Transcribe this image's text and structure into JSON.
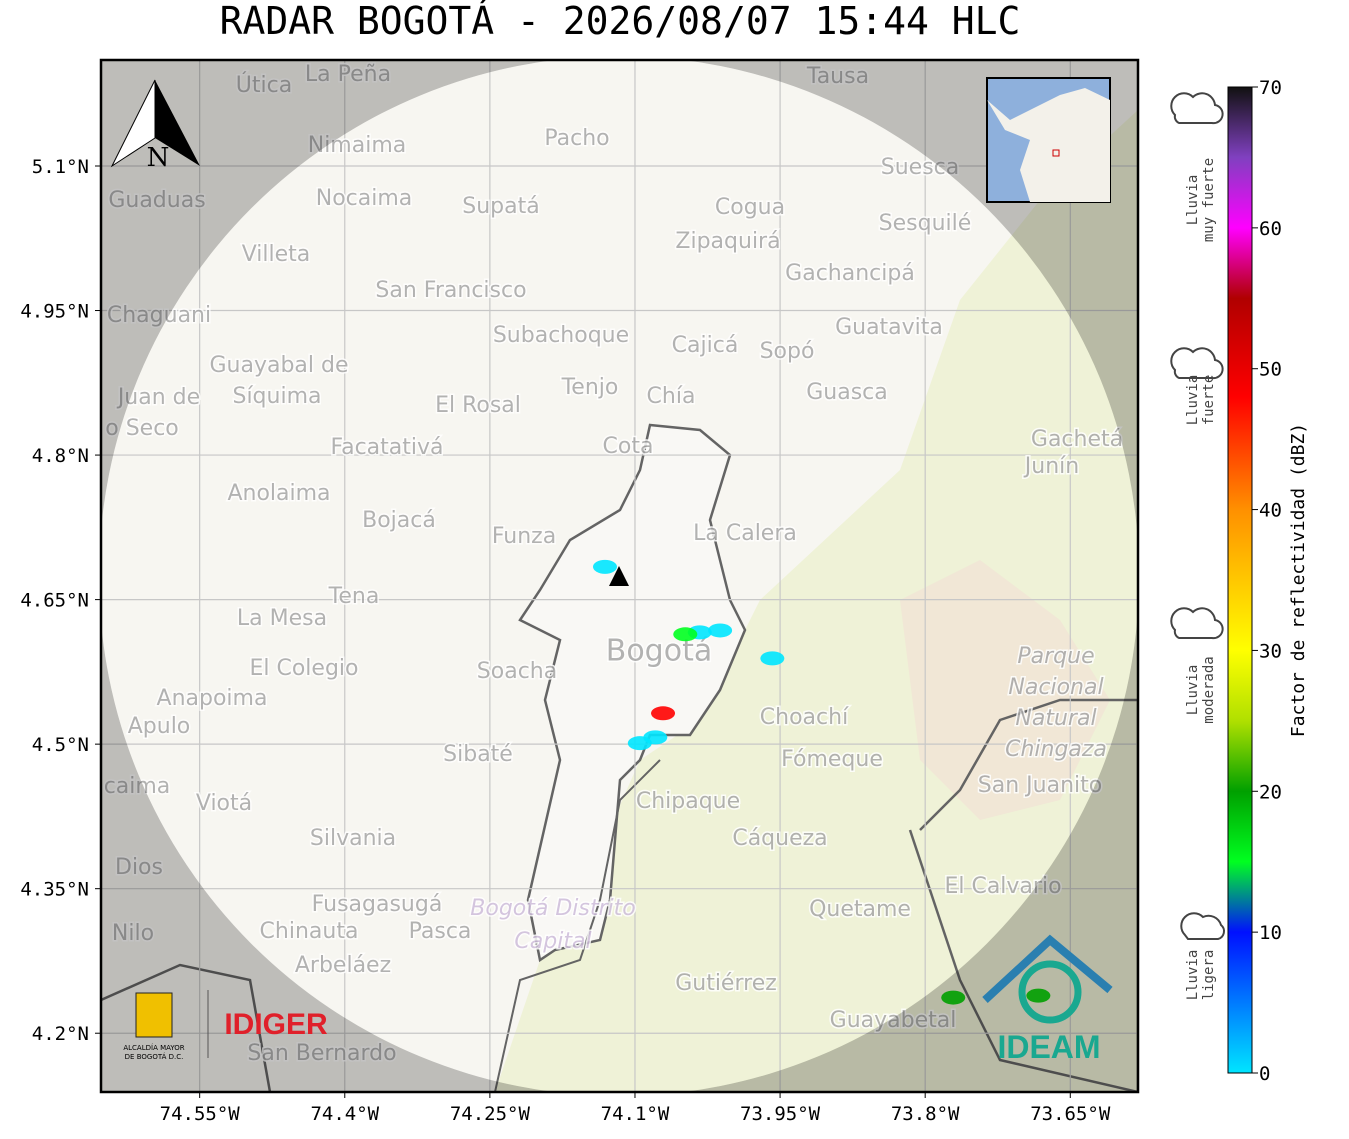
{
  "title": "RADAR BOGOTÁ - 2026/08/07 15:44 HLC",
  "map": {
    "xlim": [
      -74.652,
      -73.58
    ],
    "ylim": [
      4.139,
      5.21
    ],
    "xticks": [
      {
        "value": -74.55,
        "label": "74.55°W"
      },
      {
        "value": -74.4,
        "label": "74.4°W"
      },
      {
        "value": -74.25,
        "label": "74.25°W"
      },
      {
        "value": -74.1,
        "label": "74.1°W"
      },
      {
        "value": -73.95,
        "label": "73.95°W"
      },
      {
        "value": -73.8,
        "label": "73.8°W"
      },
      {
        "value": -73.65,
        "label": "73.65°W"
      }
    ],
    "yticks": [
      {
        "value": 5.1,
        "label": "5.1°N"
      },
      {
        "value": 4.95,
        "label": "4.95°N"
      },
      {
        "value": 4.8,
        "label": "4.8°N"
      },
      {
        "value": 4.65,
        "label": "4.65°N"
      },
      {
        "value": 4.5,
        "label": "4.5°N"
      },
      {
        "value": 4.35,
        "label": "4.35°N"
      },
      {
        "value": 4.2,
        "label": "4.2°N"
      }
    ],
    "grid": true,
    "north": "N",
    "places": [
      "La Peña",
      "Útica",
      "Tausa",
      "Pacho",
      "Nimaima",
      "Guaduas",
      "Nocaima",
      "Supatá",
      "Cogua",
      "Suesca",
      "Sesquilé",
      "Villeta",
      "Zipaquirá",
      "Gachancipá",
      "San Francisco",
      "Chaguani",
      "Guatavita",
      "Subachoque",
      "Cajicá",
      "Sopó",
      "Guayabal de",
      "Síquima",
      "Juan de",
      "o Seco",
      "Tenjo",
      "Chía",
      "Guasca",
      "El Rosal",
      "Facatativá",
      "Cota",
      "Gachetá",
      "Junín",
      "Anolaima",
      "Bojacá",
      "Funza",
      "La Calera",
      "Tena",
      "La Mesa",
      "Bogotá",
      "El Colegio",
      "Soacha",
      "Anapoima",
      "Apulo",
      "Choachí",
      "Sibaté",
      "Fómeque",
      "caima",
      "Viotá",
      "Chipaque",
      "Silvania",
      "Cáqueza",
      "Dios",
      "El Calvario",
      "Fusagasugá",
      "Quetame",
      "Chinauta",
      "Pasca",
      "Nilo",
      "Arbeláez",
      "Gutiérrez",
      "Guayabetal",
      "San Bernardo",
      "San Juanito"
    ],
    "park": [
      "Parque",
      "Nacional",
      "Natural",
      "Chingaza"
    ],
    "district": [
      "Bogotá Distrito",
      "Capital"
    ],
    "echoes": [
      {
        "lon": -74.131,
        "lat": 4.684,
        "dbz": 8
      },
      {
        "lon": -74.033,
        "lat": 4.616,
        "dbz": 8
      },
      {
        "lon": -74.012,
        "lat": 4.618,
        "dbz": 6
      },
      {
        "lon": -74.048,
        "lat": 4.614,
        "dbz": 15
      },
      {
        "lon": -73.958,
        "lat": 4.589,
        "dbz": 5
      },
      {
        "lon": -74.071,
        "lat": 4.532,
        "dbz": 50
      },
      {
        "lon": -74.079,
        "lat": 4.507,
        "dbz": 7
      },
      {
        "lon": -74.095,
        "lat": 4.501,
        "dbz": 3
      },
      {
        "lon": -73.683,
        "lat": 4.239,
        "dbz": 22
      },
      {
        "lon": -73.771,
        "lat": 4.237,
        "dbz": 20
      }
    ]
  },
  "colorbar": {
    "label": "Factor de reflectividad (dBZ)",
    "lim": [
      0,
      70
    ],
    "ticks": [
      0,
      10,
      20,
      30,
      40,
      50,
      60,
      70
    ],
    "colormap": [
      {
        "value": 0,
        "color": "#00e5ff"
      },
      {
        "value": 10,
        "color": "#0010ff"
      },
      {
        "value": 15,
        "color": "#00ff20"
      },
      {
        "value": 20,
        "color": "#00a000"
      },
      {
        "value": 25,
        "color": "#b0e000"
      },
      {
        "value": 30,
        "color": "#ffff00"
      },
      {
        "value": 40,
        "color": "#ff9000"
      },
      {
        "value": 48,
        "color": "#ff0000"
      },
      {
        "value": 55,
        "color": "#b00000"
      },
      {
        "value": 60,
        "color": "#ff00ff"
      },
      {
        "value": 65,
        "color": "#8040c0"
      },
      {
        "value": 70,
        "color": "#111111"
      }
    ],
    "categories": [
      [
        "Lluvia",
        "ligera"
      ],
      [
        "Lluvia",
        "moderada"
      ],
      [
        "Lluvia",
        "fuerte"
      ],
      [
        "Lluvia",
        "muy fuerte"
      ]
    ]
  },
  "logos": {
    "idiger": "IDIGER",
    "ideam": "IDEAM",
    "alcaldia": [
      "ALCALDÍA MAYOR",
      "DE BOGOTÁ D.C."
    ]
  }
}
